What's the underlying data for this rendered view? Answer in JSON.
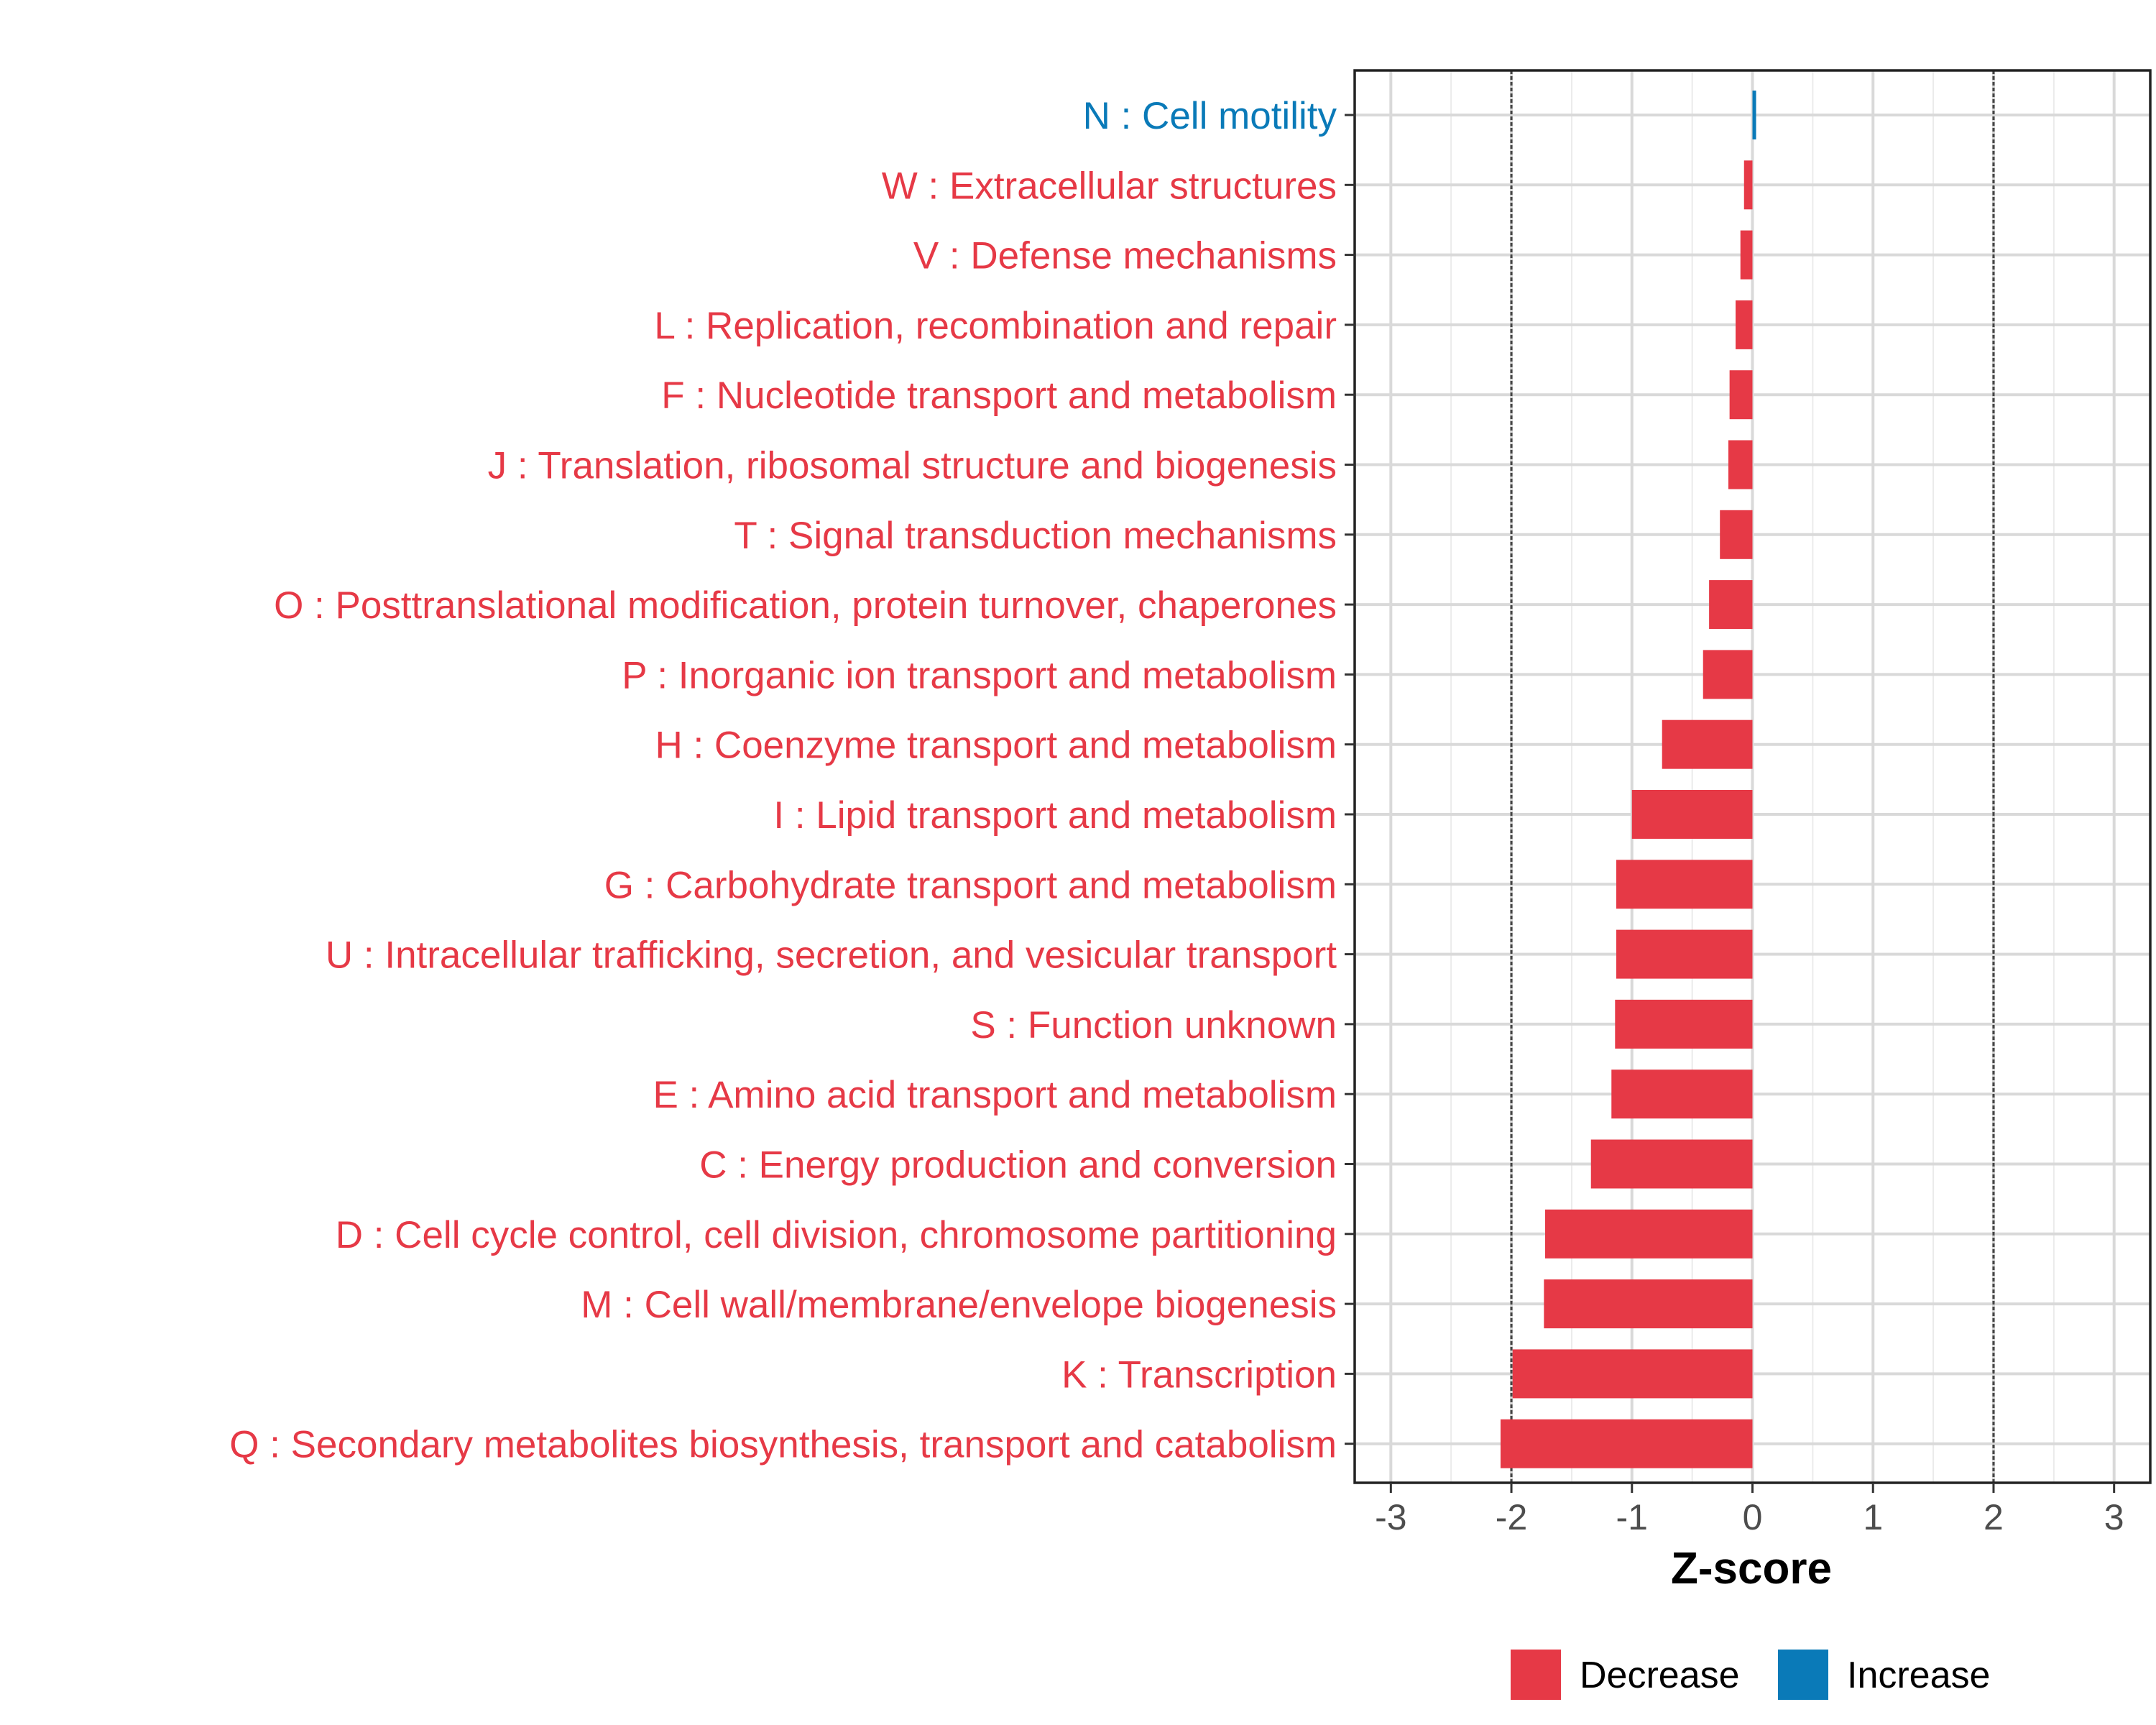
{
  "chart_data": {
    "type": "bar",
    "orientation": "horizontal",
    "title": "",
    "xlabel": "Z-score",
    "ylabel": "",
    "xlim": [
      -3.3,
      3.3
    ],
    "x_ticks": [
      -3,
      -2,
      -1,
      0,
      1,
      2,
      3
    ],
    "reference_lines": [
      -2,
      2
    ],
    "grid": true,
    "legend_position": "bottom",
    "legend": [
      {
        "key": "Decrease",
        "label": "Decrease",
        "color": "#E63946"
      },
      {
        "key": "Increase",
        "label": "Increase",
        "color": "#0A7AB8"
      }
    ],
    "categories": [
      "N : Cell motility",
      "W : Extracellular structures",
      "V : Defense mechanisms",
      "L : Replication, recombination and repair",
      "F : Nucleotide transport and metabolism",
      "J : Translation, ribosomal structure and biogenesis",
      "T : Signal transduction mechanisms",
      "O : Posttranslational modification, protein turnover, chaperones",
      "P : Inorganic ion transport and metabolism",
      "H : Coenzyme transport and metabolism",
      "I : Lipid transport and metabolism",
      "G : Carbohydrate transport and metabolism",
      "U : Intracellular trafficking, secretion, and vesicular transport",
      "S : Function unknown",
      "E : Amino acid transport and metabolism",
      "C : Energy production and conversion",
      "D : Cell cycle control, cell division, chromosome partitioning",
      "M : Cell wall/membrane/envelope biogenesis",
      "K : Transcription",
      "Q : Secondary metabolites biosynthesis, transport and catabolism"
    ],
    "values": [
      0.03,
      -0.07,
      -0.1,
      -0.14,
      -0.19,
      -0.2,
      -0.27,
      -0.36,
      -0.41,
      -0.75,
      -1.0,
      -1.13,
      -1.13,
      -1.14,
      -1.17,
      -1.34,
      -1.72,
      -1.73,
      -1.99,
      -2.09
    ],
    "groups": [
      "Increase",
      "Decrease",
      "Decrease",
      "Decrease",
      "Decrease",
      "Decrease",
      "Decrease",
      "Decrease",
      "Decrease",
      "Decrease",
      "Decrease",
      "Decrease",
      "Decrease",
      "Decrease",
      "Decrease",
      "Decrease",
      "Decrease",
      "Decrease",
      "Decrease",
      "Decrease"
    ]
  }
}
